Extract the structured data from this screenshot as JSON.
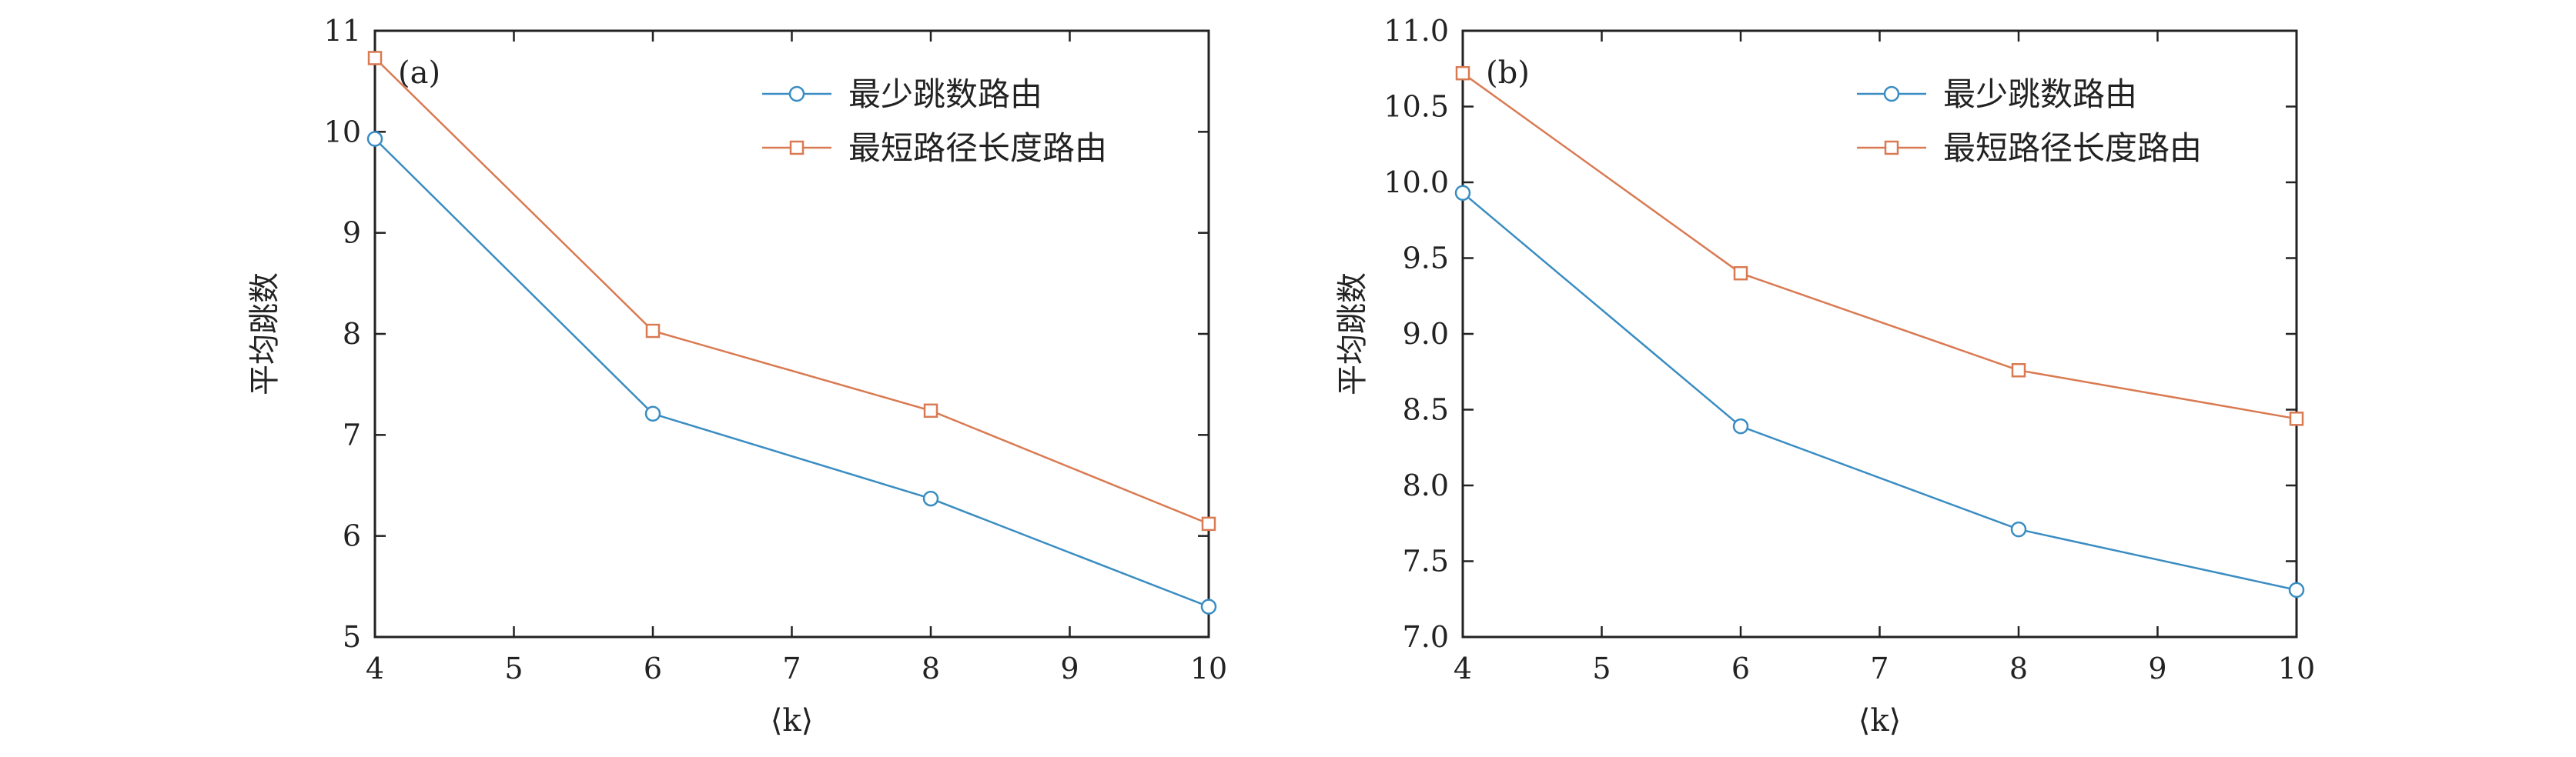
{
  "colors": {
    "series1": "#3a8dc2",
    "series2": "#d97a52",
    "axis": "#222222",
    "background": "#ffffff"
  },
  "chart_data": [
    {
      "type": "line",
      "panel_label": "(a)",
      "xlabel": "⟨k⟩",
      "ylabel": "平均跳数",
      "xlim": [
        4,
        10
      ],
      "ylim": [
        5,
        11
      ],
      "xticks": [
        4,
        5,
        6,
        7,
        8,
        9,
        10
      ],
      "yticks": [
        5,
        6,
        7,
        8,
        9,
        10,
        11
      ],
      "xtick_labels": [
        "4",
        "5",
        "6",
        "7",
        "8",
        "9",
        "10"
      ],
      "ytick_labels": [
        "5",
        "6",
        "7",
        "8",
        "9",
        "10",
        "11"
      ],
      "legend_position": "top-right",
      "series": [
        {
          "name": "最少跳数路由",
          "marker": "circle",
          "x": [
            4,
            6,
            8,
            10
          ],
          "y": [
            9.93,
            7.21,
            6.37,
            5.3
          ]
        },
        {
          "name": "最短路径长度路由",
          "marker": "square",
          "x": [
            4,
            6,
            8,
            10
          ],
          "y": [
            10.73,
            8.03,
            7.24,
            6.12
          ]
        }
      ]
    },
    {
      "type": "line",
      "panel_label": "(b)",
      "xlabel": "⟨k⟩",
      "ylabel": "平均跳数",
      "xlim": [
        4,
        10
      ],
      "ylim": [
        7.0,
        11.0
      ],
      "xticks": [
        4,
        5,
        6,
        7,
        8,
        9,
        10
      ],
      "yticks": [
        7.0,
        7.5,
        8.0,
        8.5,
        9.0,
        9.5,
        10.0,
        10.5,
        11.0
      ],
      "xtick_labels": [
        "4",
        "5",
        "6",
        "7",
        "8",
        "9",
        "10"
      ],
      "ytick_labels": [
        "7.0",
        "7.5",
        "8.0",
        "8.5",
        "9.0",
        "9.5",
        "10.0",
        "10.5",
        "11.0"
      ],
      "legend_position": "top-right",
      "series": [
        {
          "name": "最少跳数路由",
          "marker": "circle",
          "x": [
            4,
            6,
            8,
            10
          ],
          "y": [
            9.93,
            8.39,
            7.71,
            7.31
          ]
        },
        {
          "name": "最短路径长度路由",
          "marker": "square",
          "x": [
            4,
            6,
            8,
            10
          ],
          "y": [
            10.72,
            9.4,
            8.76,
            8.44
          ]
        }
      ]
    }
  ]
}
